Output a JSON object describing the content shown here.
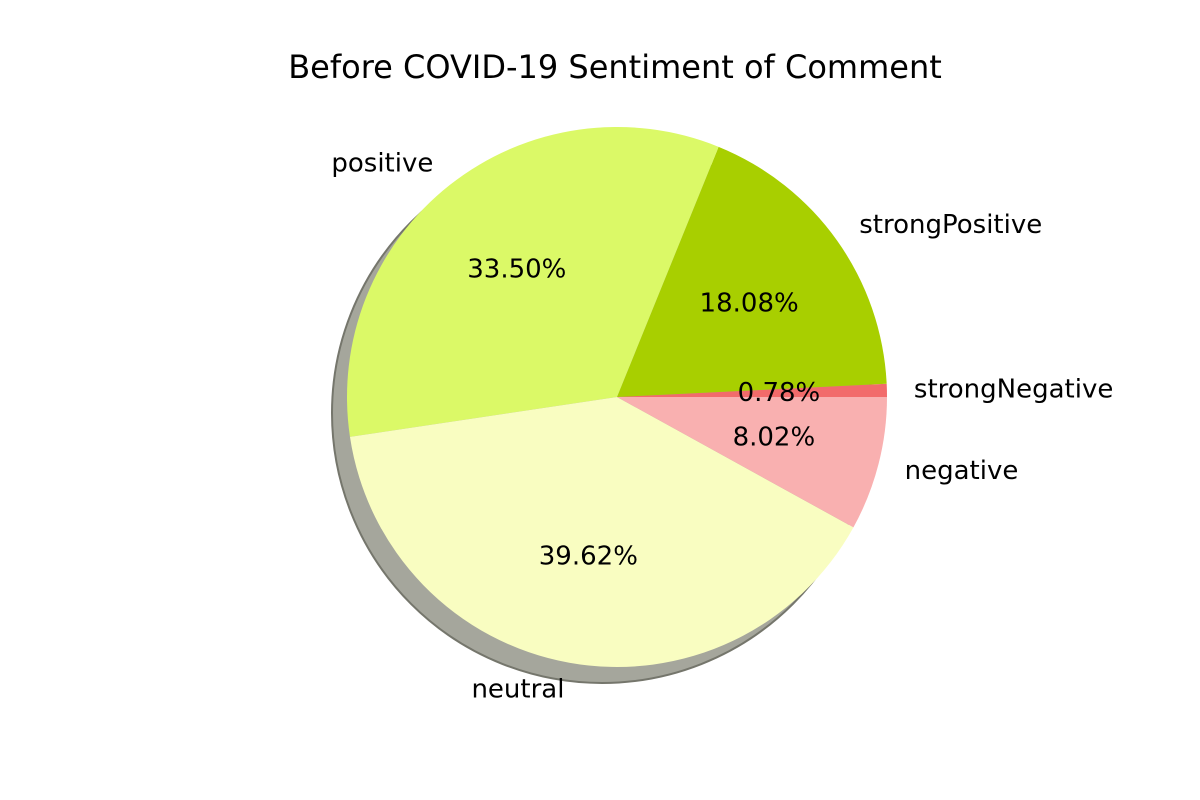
{
  "chart_data": {
    "type": "pie",
    "title": "Before COVID-19 Sentiment of Comment",
    "start_angle_deg": 0,
    "direction": "counterclockwise",
    "shadow": true,
    "slices": [
      {
        "label": "strongNegative",
        "value": 0.78,
        "pct_label": "0.78%",
        "color": "#f26b6b"
      },
      {
        "label": "strongPositive",
        "value": 18.08,
        "pct_label": "18.08%",
        "color": "#a8cf00"
      },
      {
        "label": "positive",
        "value": 33.5,
        "pct_label": "33.50%",
        "color": "#dbf967"
      },
      {
        "label": "neutral",
        "value": 39.62,
        "pct_label": "39.62%",
        "color": "#f9fdc1"
      },
      {
        "label": "negative",
        "value": 8.02,
        "pct_label": "8.02%",
        "color": "#f9b0b0"
      }
    ]
  }
}
